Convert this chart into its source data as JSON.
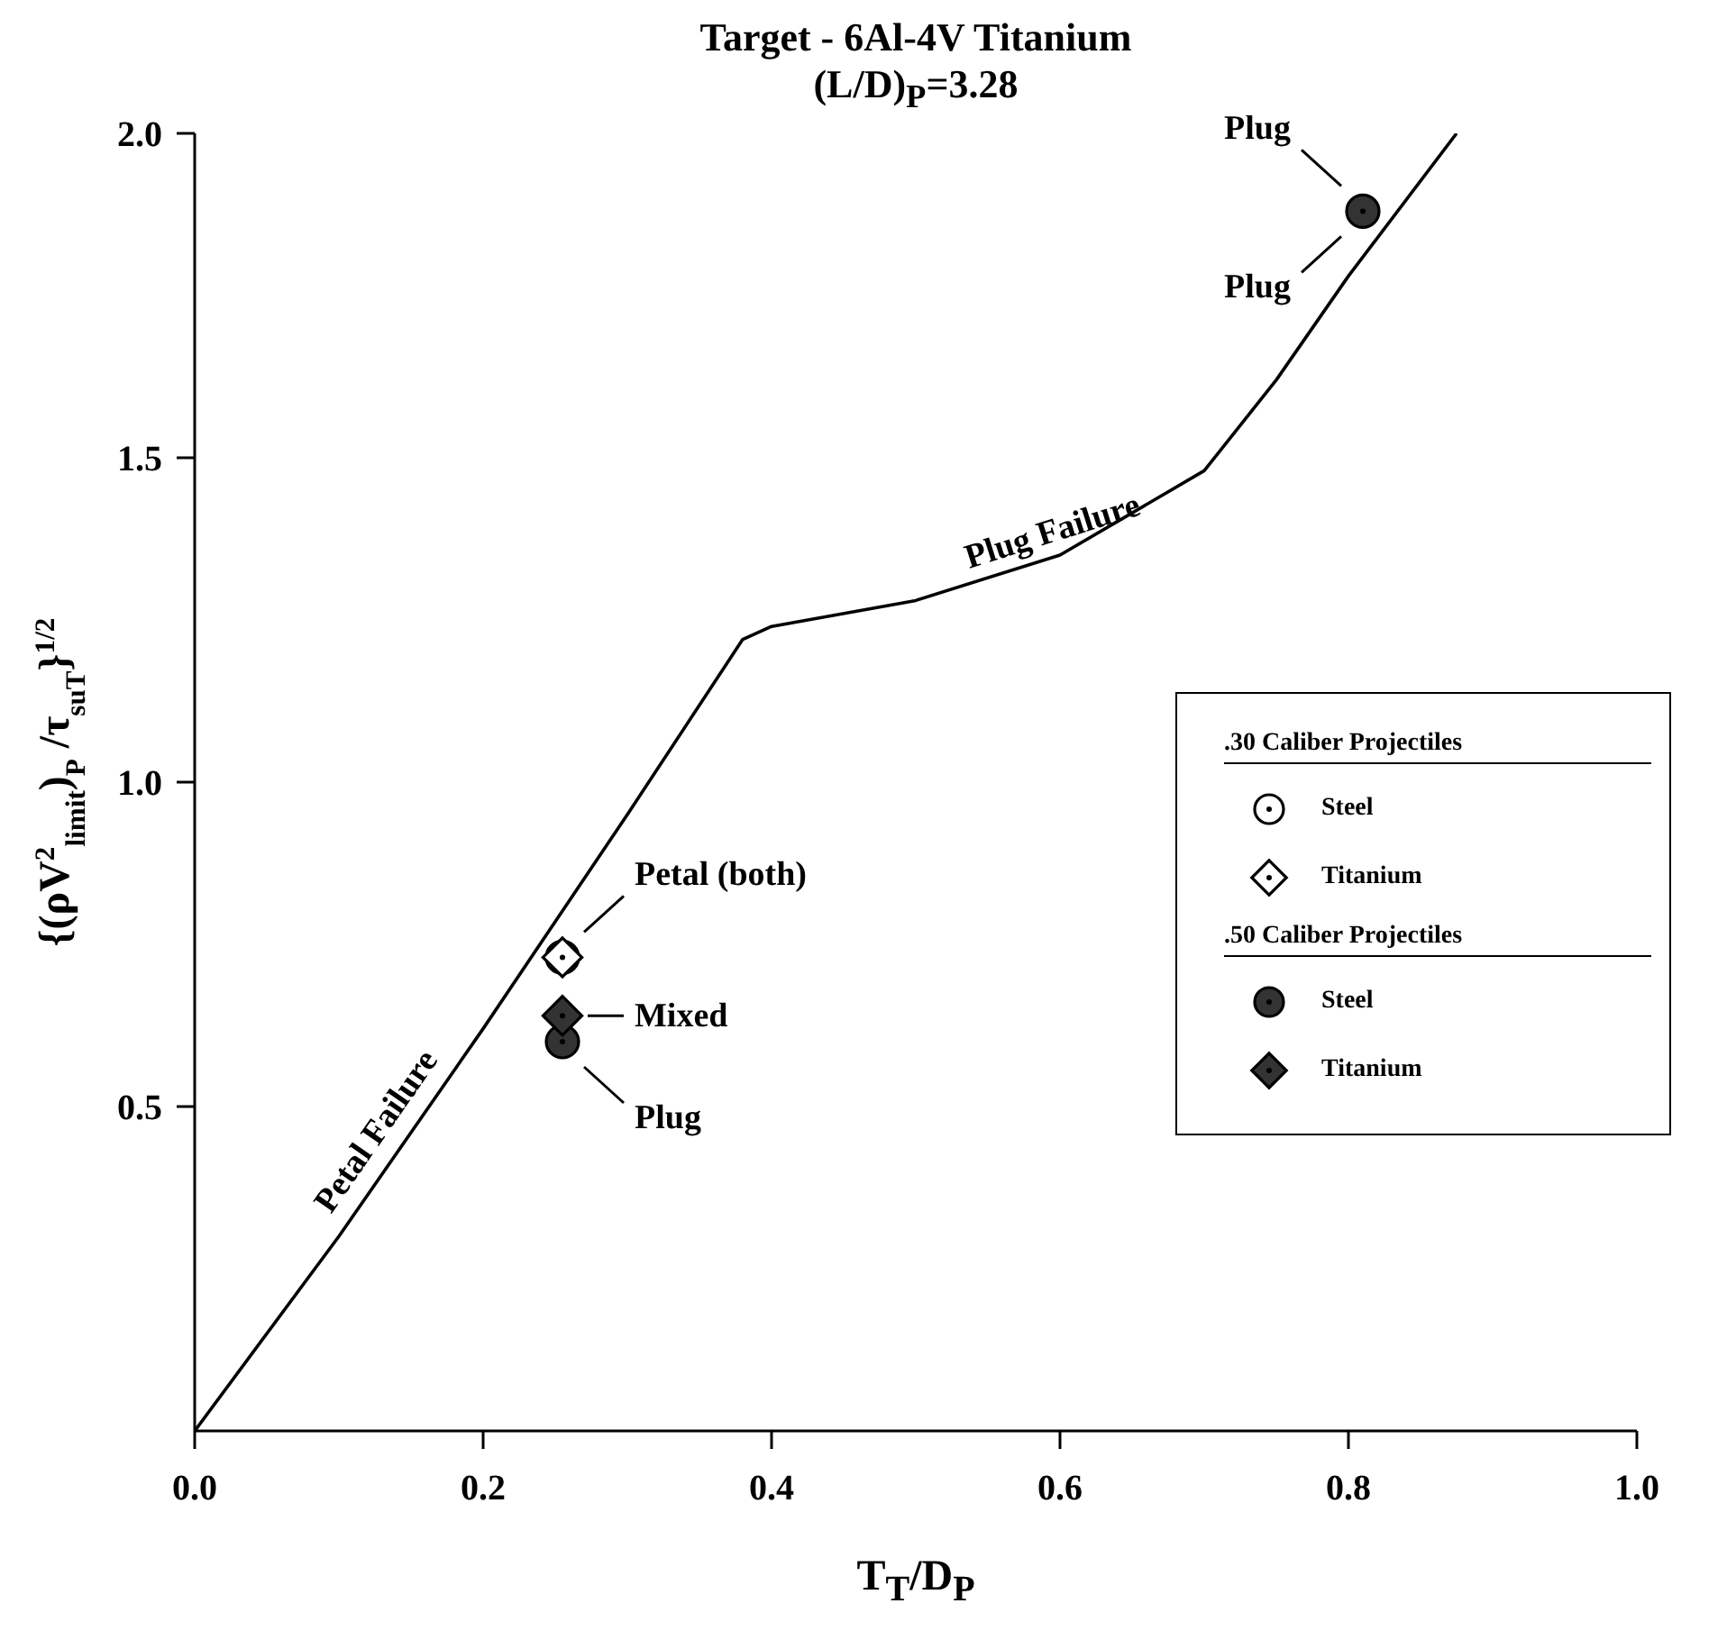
{
  "chart_data": {
    "type": "scatter",
    "title": "Target - 6Al-4V Titanium",
    "subtitle": "(L/D)$_{P}$=3.28",
    "xlabel": "T$_{T}$/D$_{P}$",
    "ylabel": "{(ρV$^{2}$$_{limit}$)$_{P}$ /τ$_{suT}$}$^{1/2}$",
    "xlim": [
      0,
      1.0
    ],
    "xticks": [
      {
        "value": 0,
        "label": "0.0"
      },
      0.2,
      0.4,
      0.6,
      0.8,
      {
        "value": 1,
        "label": "1.0"
      }
    ],
    "ylim": [
      0,
      2.0
    ],
    "yticks": [
      0.5,
      {
        "value": 1,
        "label": "1.0"
      },
      1.5,
      {
        "value": 2,
        "label": "2.0"
      }
    ],
    "grid": false,
    "legend": "right",
    "series": [
      {
        "type": "line",
        "color": "#000000",
        "x": [
          0,
          0.1,
          0.2,
          0.3,
          0.38,
          0.4,
          0.5,
          0.6,
          0.7,
          0.75,
          0.8,
          0.875
        ],
        "values": [
          0,
          0.3,
          0.62,
          0.95,
          1.22,
          1.24,
          1.28,
          1.35,
          1.48,
          1.62,
          1.78,
          2.0
        ]
      },
      {
        "name": "Steel",
        "color": "#ffffff",
        "marker": "circle",
        "x": [
          0.255
        ],
        "values": [
          0.73
        ]
      },
      {
        "name": "Titanium",
        "color": "#ffffff",
        "marker": "diamond",
        "x": [
          0.255
        ],
        "values": [
          0.73
        ]
      },
      {
        "name": "Steel",
        "color": "#333333",
        "marker": "circle",
        "x": [
          0.255,
          0.81
        ],
        "values": [
          0.6,
          1.88
        ]
      },
      {
        "name": "Titanium",
        "color": "#333333",
        "marker": "diamond",
        "x": [
          0.255
        ],
        "values": [
          0.64
        ]
      }
    ],
    "annotations": [
      ".30 Caliber Projectiles",
      ".50 Caliber Projectiles",
      {
        "text": "Petal (both)",
        "x": 0.255,
        "y": 0.73
      },
      {
        "text": "Mixed",
        "x": 0.255,
        "y": 0.64
      },
      {
        "text": "Plug",
        "x": 0.255,
        "y": 0.6
      },
      {
        "text": "Plug",
        "x": 0.81,
        "y": 1.88
      },
      {
        "text": "Plug",
        "x": 0.81,
        "y": 1.88
      },
      {
        "text": "Petal Failure",
        "x": 0.14,
        "y": 0.44
      },
      {
        "text": "Plug Failure",
        "x": 0.6,
        "y": 1.35
      }
    ]
  }
}
